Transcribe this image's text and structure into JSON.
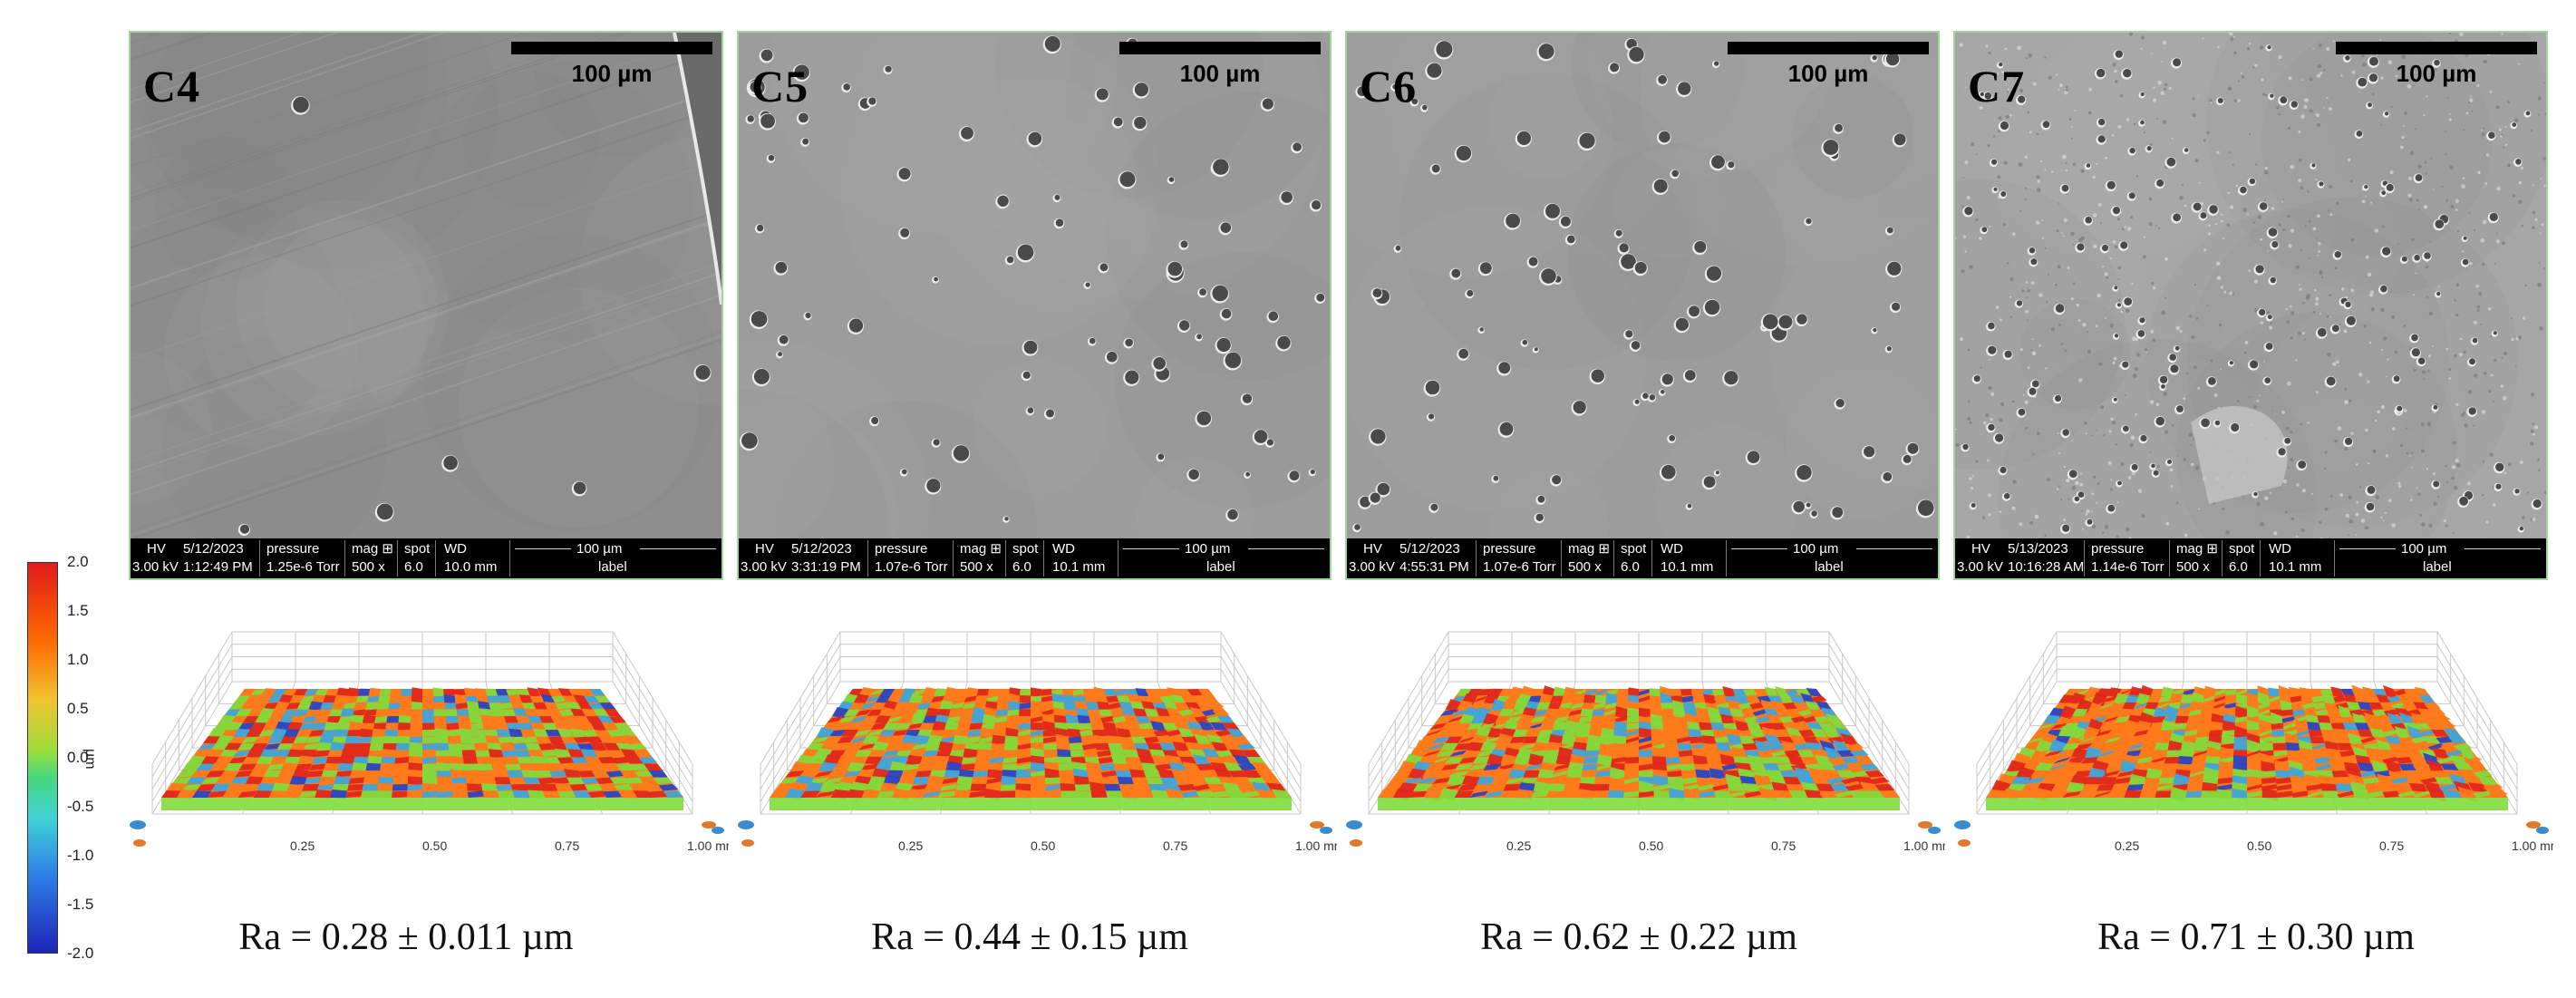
{
  "panels": [
    {
      "tag": "C4",
      "scale": "100 µm",
      "hv": "HV",
      "hv_val": "3.00 kV",
      "date": "5/12/2023",
      "time": "1:12:49 PM",
      "pressure": "pressure",
      "pressure_val": "1.25e-6 Torr",
      "mag": "mag ⊞",
      "mag_val": "500 x",
      "spot": "spot",
      "spot_val": "6.0",
      "wd": "WD",
      "wd_val": "10.0 mm",
      "bar_scale": "100 µm",
      "bar_label": "label",
      "ra": "Ra = 0.28 ± 0.011 µm"
    },
    {
      "tag": "C5",
      "scale": "100 µm",
      "hv": "HV",
      "hv_val": "3.00 kV",
      "date": "5/12/2023",
      "time": "3:31:19 PM",
      "pressure": "pressure",
      "pressure_val": "1.07e-6 Torr",
      "mag": "mag ⊞",
      "mag_val": "500 x",
      "spot": "spot",
      "spot_val": "6.0",
      "wd": "WD",
      "wd_val": "10.1 mm",
      "bar_scale": "100 µm",
      "bar_label": "label",
      "ra": "Ra = 0.44 ± 0.15 µm"
    },
    {
      "tag": "C6",
      "scale": "100 µm",
      "hv": "HV",
      "hv_val": "3.00 kV",
      "date": "5/12/2023",
      "time": "4:55:31 PM",
      "pressure": "pressure",
      "pressure_val": "1.07e-6 Torr",
      "mag": "mag ⊞",
      "mag_val": "500 x",
      "spot": "spot",
      "spot_val": "6.0",
      "wd": "WD",
      "wd_val": "10.1 mm",
      "bar_scale": "100 µm",
      "bar_label": "label",
      "ra": "Ra = 0.62 ± 0.22 µm"
    },
    {
      "tag": "C7",
      "scale": "100 µm",
      "hv": "HV",
      "hv_val": "3.00 kV",
      "date": "5/13/2023",
      "time": "10:16:28 AM",
      "pressure": "pressure",
      "pressure_val": "1.14e-6 Torr",
      "mag": "mag ⊞",
      "mag_val": "500 x",
      "spot": "spot",
      "spot_val": "6.0",
      "wd": "WD",
      "wd_val": "10.1 mm",
      "bar_scale": "100 µm",
      "bar_label": "label",
      "ra": "Ra = 0.71 ± 0.30 µm"
    }
  ],
  "colorbar": {
    "ticks": [
      "2.0",
      "1.5",
      "1.0",
      "0.5",
      "0.0",
      "-0.5",
      "-1.0",
      "-1.5",
      "-2.0"
    ],
    "unit": "µm",
    "colors": [
      "#e11b1b",
      "#ff6a00",
      "#f2c230",
      "#9ede3a",
      "#46d97e",
      "#3fd0d6",
      "#2f7fe8",
      "#1d25b8"
    ]
  },
  "axis_ticks": [
    "0.25",
    "0.50",
    "0.75",
    "1.00 mm"
  ],
  "surface_colors": {
    "high": "#e0251b",
    "mid": "#ff7a1a",
    "zero": "#7fdc3c",
    "low": "#3aa6e0",
    "deep": "#2443c8"
  }
}
